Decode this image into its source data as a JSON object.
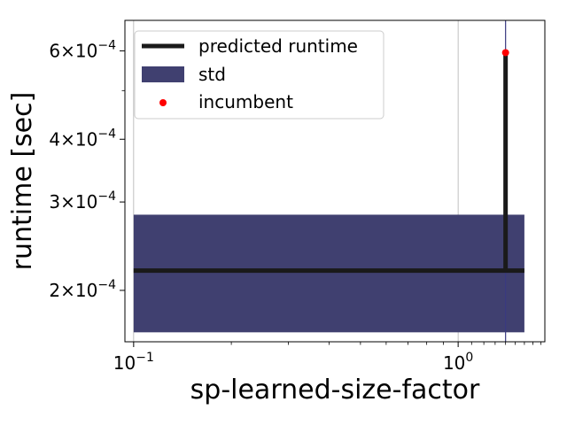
{
  "chart_data": {
    "type": "line",
    "xlabel": "sp-learned-size-factor",
    "ylabel": "runtime [sec]",
    "xscale": "log",
    "yscale": "log",
    "xlim": [
      0.094,
      1.85
    ],
    "ylim": [
      0.000158,
      0.00069
    ],
    "grid": "vertical at major x ticks",
    "legend_position": "top-left",
    "x_ticks": [
      {
        "value": 0.1,
        "base": "10",
        "exp": "−1"
      },
      {
        "value": 1.0,
        "base": "10",
        "exp": "0"
      }
    ],
    "y_ticks": [
      {
        "value": 0.0002,
        "mant": "2",
        "exp": "−4"
      },
      {
        "value": 0.0003,
        "mant": "3",
        "exp": "−4"
      },
      {
        "value": 0.0004,
        "mant": "4",
        "exp": "−4"
      },
      {
        "value": 0.0006,
        "mant": "6",
        "exp": "−4"
      }
    ],
    "series": [
      {
        "name": "predicted runtime",
        "kind": "line",
        "color": "#1a1a1a",
        "points": [
          {
            "x": 0.1,
            "y": 0.000219
          },
          {
            "x": 1.4,
            "y": 0.000219
          },
          {
            "x": 1.4,
            "y": 0.000595
          },
          {
            "x": 1.4,
            "y": 0.000219
          },
          {
            "x": 1.6,
            "y": 0.000219
          }
        ]
      },
      {
        "name": "std",
        "kind": "band",
        "color": "#404070",
        "x": [
          0.1,
          1.6
        ],
        "y_lower": 0.000165,
        "y_upper": 0.000283
      },
      {
        "name": "incumbent",
        "kind": "scatter",
        "color": "#ff0000",
        "points": [
          {
            "x": 1.4,
            "y": 0.000595
          }
        ]
      }
    ],
    "vertical_line": {
      "x": 1.4,
      "color": "#3a3a80"
    }
  }
}
